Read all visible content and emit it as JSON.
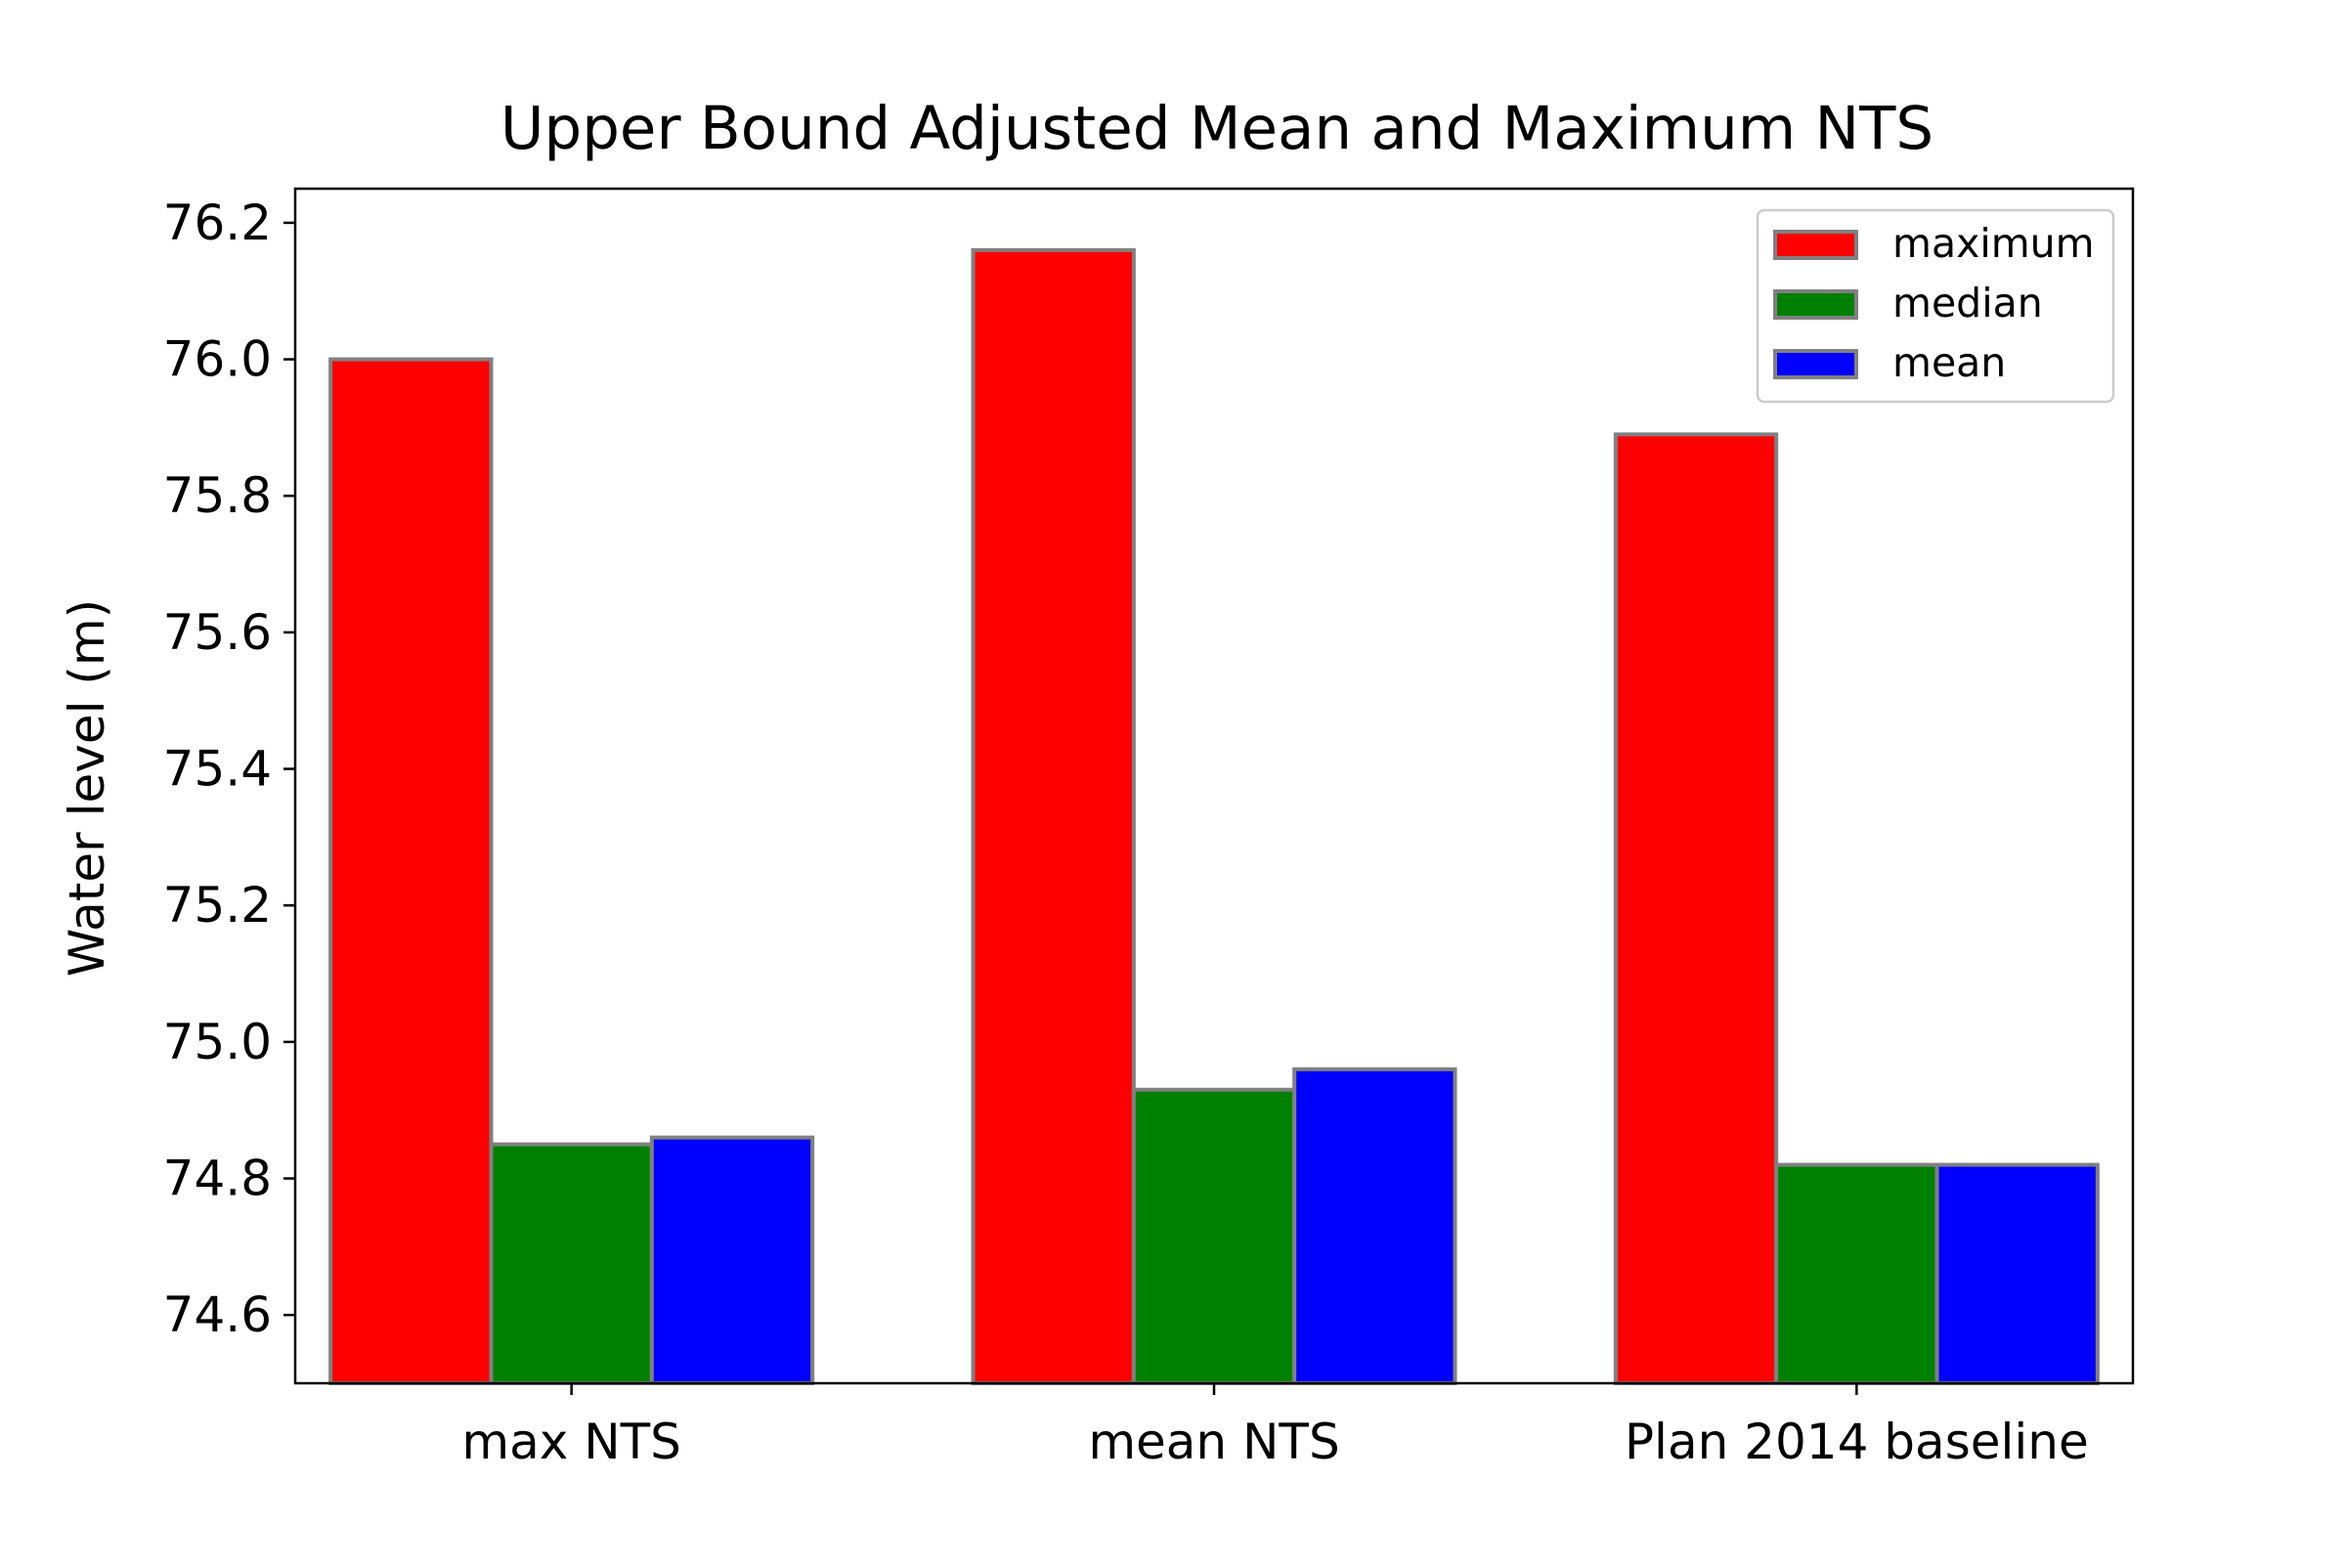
{
  "chart_data": {
    "type": "bar",
    "title": "Upper Bound Adjusted Mean and Maximum NTS",
    "xlabel": "",
    "ylabel": "Water level (m)",
    "categories": [
      "max NTS",
      "mean NTS",
      "Plan 2014 baseline"
    ],
    "series": [
      {
        "name": "maximum",
        "color": "#ff0000",
        "values": [
          76.0,
          76.16,
          75.89
        ]
      },
      {
        "name": "median",
        "color": "#008000",
        "values": [
          74.85,
          74.93,
          74.82
        ]
      },
      {
        "name": "mean",
        "color": "#0000ff",
        "values": [
          74.86,
          74.96,
          74.82
        ]
      }
    ],
    "ylim": [
      74.5,
      76.25
    ],
    "yticks": [
      74.6,
      74.8,
      75.0,
      75.2,
      75.4,
      75.6,
      75.8,
      76.0,
      76.2
    ],
    "ytick_labels": [
      "74.6",
      "74.8",
      "75.0",
      "75.2",
      "75.4",
      "75.6",
      "75.8",
      "76.0",
      "76.2"
    ],
    "bar_edge_color": "#808080",
    "grid": false,
    "legend_position": "top-right"
  }
}
